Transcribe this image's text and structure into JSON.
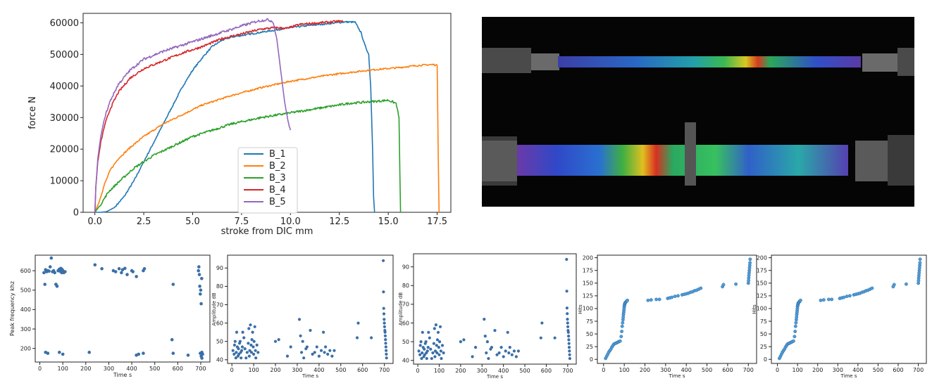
{
  "colors": {
    "B_1": "#1f77b4",
    "B_2": "#ff7f0e",
    "B_3": "#2ca02c",
    "B_4": "#d62728",
    "B_5": "#9467bd",
    "scatter": "#3a6fa8",
    "hits": "#4f9bd6"
  },
  "chart_data": [
    {
      "type": "line",
      "xlabel": "stroke from DIC mm",
      "ylabel": "force N",
      "xlim": [
        -0.6,
        18.2
      ],
      "ylim": [
        0,
        63000
      ],
      "xticks": [
        0.0,
        2.5,
        5.0,
        7.5,
        10.0,
        12.5,
        15.0,
        17.5
      ],
      "xtick_labels": [
        "0.0",
        "2.5",
        "5.0",
        "7.5",
        "10.0",
        "12.5",
        "15.0",
        "17.5"
      ],
      "yticks": [
        0,
        10000,
        20000,
        30000,
        40000,
        50000,
        60000
      ],
      "ytick_labels": [
        "0",
        "10000",
        "20000",
        "30000",
        "40000",
        "50000",
        "60000"
      ],
      "grid": false,
      "legend": "lower-center",
      "series": [
        {
          "name": "B_1",
          "color": "#1f77b4",
          "noise": 500,
          "x": [
            0,
            0.3,
            0.6,
            1.0,
            1.5,
            2.0,
            2.5,
            3.0,
            3.5,
            4.0,
            4.5,
            5.0,
            5.5,
            6.0,
            6.5,
            7.0,
            7.5,
            8.0,
            9.0,
            10.0,
            11.0,
            12.0,
            12.8,
            13.3,
            13.6,
            13.8,
            14.0,
            14.1,
            14.2,
            14.25,
            14.3
          ],
          "y": [
            0,
            0,
            200,
            1500,
            5000,
            10000,
            16000,
            22000,
            28000,
            34000,
            40000,
            45000,
            49000,
            52500,
            54500,
            55500,
            56000,
            56500,
            57500,
            58500,
            59200,
            59800,
            60300,
            60200,
            57000,
            53000,
            50000,
            40000,
            20000,
            5000,
            0
          ]
        },
        {
          "name": "B_2",
          "color": "#ff7f0e",
          "noise": 500,
          "x": [
            0,
            0.2,
            0.5,
            0.8,
            1.2,
            1.8,
            2.5,
            3.5,
            4.5,
            5.5,
            7.0,
            8.5,
            10.0,
            12.0,
            14.0,
            15.5,
            16.5,
            17.3,
            17.5,
            17.55,
            17.6
          ],
          "y": [
            0,
            3000,
            9000,
            13500,
            17000,
            20500,
            24000,
            28000,
            31000,
            34000,
            37000,
            39500,
            41500,
            43500,
            45000,
            45800,
            46500,
            46800,
            46500,
            20000,
            0
          ]
        },
        {
          "name": "B_3",
          "color": "#2ca02c",
          "noise": 700,
          "x": [
            0,
            0.3,
            0.7,
            1.2,
            2.0,
            3.0,
            4.0,
            5.0,
            6.0,
            7.0,
            8.5,
            10.0,
            11.5,
            13.0,
            14.5,
            15.0,
            15.4,
            15.55,
            15.6,
            15.63
          ],
          "y": [
            0,
            2500,
            6500,
            9500,
            14000,
            18000,
            21000,
            24000,
            26000,
            28000,
            30000,
            31500,
            33000,
            34500,
            35200,
            35500,
            34500,
            30000,
            10000,
            0
          ]
        },
        {
          "name": "B_4",
          "color": "#d62728",
          "noise": 700,
          "x": [
            0,
            0.05,
            0.15,
            0.3,
            0.5,
            0.8,
            1.2,
            1.8,
            2.5,
            3.5,
            4.5,
            5.5,
            6.5,
            7.5,
            8.5,
            9.2,
            9.8,
            10.5,
            11.5,
            12.5,
            12.7
          ],
          "y": [
            0,
            8000,
            16000,
            22000,
            27500,
            33000,
            38000,
            42500,
            45500,
            48000,
            50500,
            52500,
            55000,
            56500,
            58000,
            58500,
            58200,
            59500,
            60000,
            60500,
            60300
          ]
        },
        {
          "name": "B_5",
          "color": "#9467bd",
          "noise": 800,
          "x": [
            0,
            0.05,
            0.15,
            0.3,
            0.5,
            0.8,
            1.2,
            1.8,
            2.5,
            3.5,
            4.5,
            5.5,
            6.5,
            7.5,
            8.3,
            8.8,
            9.1,
            9.3,
            9.5,
            9.7,
            9.9,
            10.0
          ],
          "y": [
            0,
            8000,
            17000,
            24000,
            30000,
            35500,
            40500,
            45000,
            48500,
            51000,
            53000,
            55000,
            57000,
            59000,
            60500,
            61000,
            60500,
            55000,
            45000,
            35000,
            28000,
            26000
          ]
        }
      ]
    },
    {
      "type": "scatter",
      "xlabel": "Time s",
      "ylabel": "Peak frequency khz",
      "xlim": [
        -20,
        740
      ],
      "ylim": [
        130,
        680
      ],
      "xticks": [
        0,
        100,
        200,
        300,
        400,
        500,
        600,
        700
      ],
      "xtick_labels": [
        "0",
        "100",
        "200",
        "300",
        "400",
        "500",
        "600",
        "700"
      ],
      "yticks": [
        200,
        300,
        400,
        500,
        600
      ],
      "ytick_labels": [
        "200",
        "300",
        "400",
        "500",
        "600"
      ],
      "x": [
        18,
        25,
        30,
        35,
        40,
        45,
        50,
        55,
        60,
        65,
        70,
        75,
        80,
        85,
        88,
        92,
        95,
        98,
        100,
        104,
        110,
        22,
        70,
        80,
        25,
        35,
        85,
        100,
        215,
        240,
        270,
        320,
        330,
        345,
        355,
        360,
        370,
        380,
        400,
        405,
        420,
        450,
        455,
        580,
        575,
        580,
        645,
        690,
        692,
        694,
        696,
        698,
        700,
        702,
        704,
        420,
        430,
        450,
        705,
        708,
        705,
        702,
        698
      ],
      "y": [
        590,
        605,
        595,
        600,
        598,
        620,
        665,
        595,
        600,
        590,
        530,
        520,
        600,
        608,
        598,
        612,
        590,
        605,
        600,
        590,
        595,
        530,
        530,
        600,
        180,
        175,
        180,
        170,
        180,
        630,
        610,
        600,
        595,
        610,
        590,
        605,
        612,
        580,
        600,
        595,
        570,
        600,
        610,
        530,
        245,
        175,
        165,
        600,
        620,
        580,
        520,
        480,
        500,
        430,
        560,
        165,
        170,
        175,
        180,
        170,
        150,
        160,
        175
      ]
    },
    {
      "type": "scatter",
      "xlabel": "Time s",
      "ylabel": "Amplitude dB",
      "xlim": [
        -20,
        740
      ],
      "ylim": [
        38,
        97
      ],
      "xticks": [
        0,
        100,
        200,
        300,
        400,
        500,
        600,
        700
      ],
      "xtick_labels": [
        "0",
        "100",
        "200",
        "300",
        "400",
        "500",
        "600",
        "700"
      ],
      "yticks": [
        40,
        50,
        60,
        70,
        80,
        90
      ],
      "ytick_labels": [
        "40",
        "50",
        "60",
        "70",
        "80",
        "90"
      ],
      "x": [
        5,
        10,
        12,
        15,
        18,
        20,
        22,
        25,
        28,
        30,
        32,
        35,
        38,
        40,
        42,
        45,
        48,
        50,
        55,
        60,
        65,
        70,
        75,
        78,
        80,
        82,
        85,
        88,
        90,
        92,
        95,
        98,
        100,
        102,
        105,
        108,
        110,
        115,
        120,
        200,
        215,
        255,
        270,
        310,
        315,
        320,
        325,
        330,
        340,
        345,
        360,
        370,
        380,
        390,
        400,
        410,
        420,
        425,
        430,
        440,
        450,
        460,
        470,
        575,
        580,
        640,
        695,
        696,
        697,
        698,
        699,
        700,
        701,
        702,
        703,
        704,
        705,
        706,
        707,
        708,
        709,
        710
      ],
      "y": [
        45,
        43,
        48,
        50,
        41,
        44,
        55,
        47,
        42,
        46,
        43,
        49,
        50,
        44,
        41,
        45,
        47,
        55,
        52,
        46,
        41,
        44,
        49,
        57,
        42,
        45,
        59,
        48,
        44,
        51,
        55,
        47,
        43,
        50,
        58,
        45,
        41,
        48,
        44,
        50,
        51,
        42,
        47,
        62,
        53,
        44,
        50,
        41,
        46,
        47,
        56,
        43,
        44,
        47,
        42,
        45,
        55,
        44,
        47,
        43,
        45,
        42,
        45,
        52,
        60,
        52,
        94,
        77,
        68,
        65,
        62,
        60,
        58,
        56,
        55,
        53,
        51,
        49,
        47,
        45,
        43,
        41
      ]
    },
    {
      "type": "scatter",
      "xlabel": "Time s",
      "ylabel": "Amplitude dB",
      "xlim": [
        -20,
        740
      ],
      "ylim": [
        38,
        97
      ],
      "xticks": [
        0,
        100,
        200,
        300,
        400,
        500,
        600,
        700
      ],
      "xtick_labels": [
        "0",
        "100",
        "200",
        "300",
        "400",
        "500",
        "600",
        "700"
      ],
      "yticks": [
        40,
        50,
        60,
        70,
        80,
        90
      ],
      "ytick_labels": [
        "40",
        "50",
        "60",
        "70",
        "80",
        "90"
      ],
      "x": [
        5,
        10,
        12,
        15,
        18,
        20,
        22,
        25,
        28,
        30,
        32,
        35,
        38,
        40,
        42,
        45,
        48,
        50,
        55,
        60,
        65,
        70,
        75,
        78,
        80,
        82,
        85,
        88,
        90,
        92,
        95,
        98,
        100,
        102,
        105,
        108,
        110,
        115,
        120,
        200,
        215,
        255,
        270,
        310,
        315,
        320,
        325,
        330,
        340,
        345,
        360,
        370,
        380,
        390,
        400,
        410,
        420,
        425,
        430,
        440,
        450,
        460,
        470,
        575,
        580,
        640,
        695,
        696,
        697,
        698,
        699,
        700,
        701,
        702,
        703,
        704,
        705,
        706,
        707,
        708,
        709,
        710
      ],
      "y": [
        45,
        43,
        48,
        50,
        41,
        44,
        55,
        47,
        42,
        46,
        43,
        49,
        50,
        44,
        41,
        45,
        47,
        55,
        52,
        46,
        41,
        44,
        49,
        57,
        42,
        45,
        59,
        48,
        44,
        51,
        55,
        47,
        43,
        50,
        58,
        45,
        41,
        48,
        44,
        50,
        51,
        42,
        47,
        62,
        53,
        44,
        50,
        41,
        46,
        47,
        56,
        43,
        44,
        47,
        42,
        45,
        55,
        44,
        47,
        43,
        45,
        42,
        45,
        52,
        60,
        52,
        94,
        77,
        68,
        65,
        62,
        60,
        58,
        56,
        55,
        53,
        51,
        49,
        47,
        45,
        43,
        41
      ]
    },
    {
      "type": "scatter",
      "xlabel": "Time s",
      "ylabel": "Hits",
      "xlim": [
        -30,
        740
      ],
      "ylim": [
        -8,
        205
      ],
      "xticks": [
        0,
        100,
        200,
        300,
        400,
        500,
        600,
        700
      ],
      "xtick_labels": [
        "0",
        "100",
        "200",
        "300",
        "400",
        "500",
        "600",
        "700"
      ],
      "yticks": [
        0,
        25,
        50,
        75,
        100,
        125,
        150,
        175,
        200
      ],
      "ytick_labels": [
        "0",
        "25",
        "50",
        "75",
        "100",
        "125",
        "150",
        "175",
        "200"
      ],
      "x": [
        10,
        15,
        20,
        25,
        30,
        35,
        40,
        45,
        50,
        55,
        60,
        65,
        70,
        75,
        80,
        85,
        88,
        90,
        92,
        94,
        95,
        96,
        97,
        98,
        99,
        100,
        101,
        102,
        103,
        104,
        106,
        108,
        110,
        112,
        115,
        215,
        230,
        255,
        270,
        310,
        320,
        330,
        345,
        360,
        380,
        390,
        400,
        410,
        420,
        430,
        440,
        450,
        460,
        470,
        575,
        580,
        640,
        700,
        701,
        702,
        703,
        704,
        705,
        706,
        707,
        708,
        709
      ],
      "y": [
        2,
        6,
        10,
        14,
        17,
        20,
        24,
        27,
        30,
        31,
        32,
        33,
        34,
        35,
        36,
        45,
        55,
        65,
        72,
        78,
        83,
        88,
        92,
        96,
        100,
        104,
        106,
        108,
        110,
        111,
        112,
        113,
        114,
        115,
        116,
        116,
        117,
        118,
        118,
        120,
        121,
        122,
        124,
        125,
        127,
        128,
        129,
        130,
        132,
        133,
        135,
        136,
        138,
        140,
        143,
        147,
        148,
        150,
        155,
        160,
        165,
        170,
        175,
        180,
        185,
        190,
        197
      ]
    },
    {
      "type": "scatter",
      "xlabel": "Time s",
      "ylabel": "Hits",
      "xlim": [
        -30,
        740
      ],
      "ylim": [
        -8,
        205
      ],
      "xticks": [
        0,
        100,
        200,
        300,
        400,
        500,
        600,
        700
      ],
      "xtick_labels": [
        "0",
        "100",
        "200",
        "300",
        "400",
        "500",
        "600",
        "700"
      ],
      "yticks": [
        0,
        25,
        50,
        75,
        100,
        125,
        150,
        175,
        200
      ],
      "ytick_labels": [
        "0",
        "25",
        "50",
        "75",
        "100",
        "125",
        "150",
        "175",
        "200"
      ],
      "x": [
        10,
        15,
        20,
        25,
        30,
        35,
        40,
        45,
        50,
        55,
        60,
        65,
        70,
        75,
        80,
        85,
        88,
        90,
        92,
        94,
        95,
        96,
        97,
        98,
        99,
        100,
        101,
        102,
        103,
        104,
        106,
        108,
        110,
        112,
        115,
        215,
        230,
        255,
        270,
        310,
        320,
        330,
        345,
        360,
        380,
        390,
        400,
        410,
        420,
        430,
        440,
        450,
        460,
        470,
        575,
        580,
        640,
        700,
        701,
        702,
        703,
        704,
        705,
        706,
        707,
        708,
        709
      ],
      "y": [
        2,
        6,
        10,
        14,
        17,
        20,
        24,
        27,
        30,
        31,
        32,
        33,
        34,
        35,
        36,
        45,
        55,
        65,
        72,
        78,
        83,
        88,
        92,
        96,
        100,
        104,
        106,
        108,
        110,
        111,
        112,
        113,
        114,
        115,
        116,
        116,
        117,
        118,
        118,
        120,
        121,
        122,
        124,
        125,
        127,
        128,
        129,
        130,
        132,
        133,
        135,
        136,
        138,
        140,
        143,
        147,
        148,
        150,
        155,
        160,
        165,
        170,
        175,
        180,
        185,
        190,
        197
      ]
    }
  ]
}
